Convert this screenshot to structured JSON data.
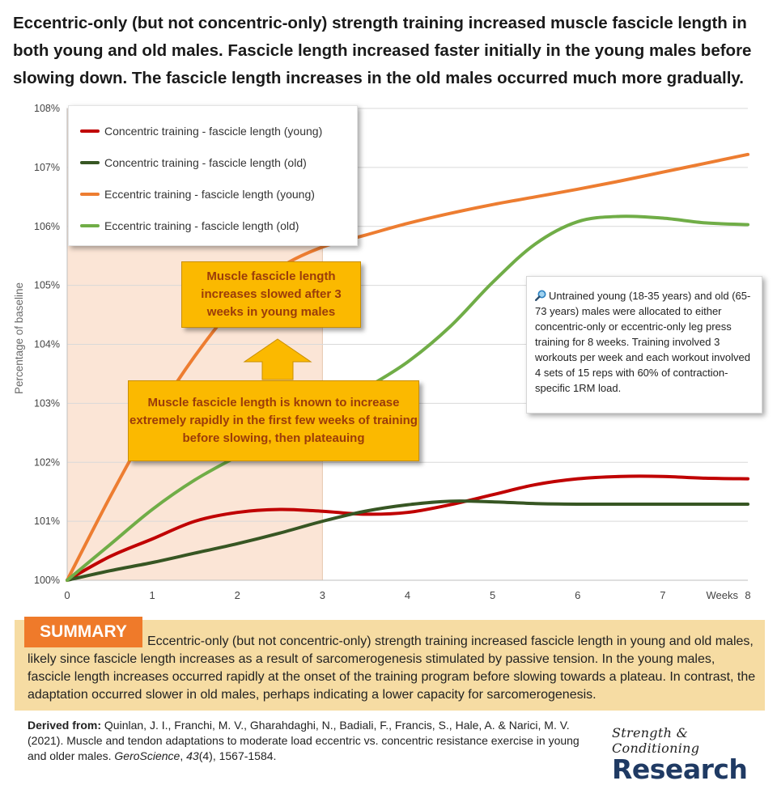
{
  "headline": "Eccentric-only (but not concentric-only) strength training increased muscle fascicle length in both young and old males. Fascicle length increased faster initially in the young males before slowing down. The fascicle length increases in the old males occurred much more gradually.",
  "chart_data": {
    "type": "line",
    "ylabel": "Percentage of baseline",
    "xlabel": "Weeks",
    "xlim": [
      0,
      8
    ],
    "ylim": [
      100,
      108
    ],
    "x_ticks": [
      "0",
      "1",
      "2",
      "3",
      "4",
      "5",
      "6",
      "7",
      "8"
    ],
    "y_ticks": [
      "100%",
      "101%",
      "102%",
      "103%",
      "104%",
      "105%",
      "106%",
      "107%",
      "108%"
    ],
    "grid": "horizontal",
    "legend_position": "top-left",
    "highlight_region": {
      "x_start": 0,
      "x_end": 3,
      "color": "#fbe5d6"
    },
    "series": [
      {
        "name": "Concentric training - fascicle length (young)",
        "color": "#c00000",
        "points": [
          [
            0,
            100
          ],
          [
            0.5,
            100.4
          ],
          [
            1,
            100.7
          ],
          [
            1.5,
            101.0
          ],
          [
            2,
            101.15
          ],
          [
            2.5,
            101.2
          ],
          [
            3,
            101.17
          ],
          [
            3.5,
            101.12
          ],
          [
            4,
            101.15
          ],
          [
            4.5,
            101.28
          ],
          [
            5,
            101.45
          ],
          [
            5.5,
            101.62
          ],
          [
            6,
            101.72
          ],
          [
            6.5,
            101.76
          ],
          [
            7,
            101.76
          ],
          [
            7.5,
            101.73
          ],
          [
            8,
            101.72
          ]
        ]
      },
      {
        "name": "Concentric training - fascicle length (old)",
        "color": "#375623",
        "points": [
          [
            0,
            100
          ],
          [
            0.5,
            100.16
          ],
          [
            1,
            100.3
          ],
          [
            1.5,
            100.46
          ],
          [
            2,
            100.62
          ],
          [
            2.5,
            100.8
          ],
          [
            3,
            101.0
          ],
          [
            3.5,
            101.17
          ],
          [
            4,
            101.28
          ],
          [
            4.5,
            101.34
          ],
          [
            5,
            101.33
          ],
          [
            5.5,
            101.3
          ],
          [
            6,
            101.29
          ],
          [
            6.5,
            101.29
          ],
          [
            7,
            101.29
          ],
          [
            7.5,
            101.29
          ],
          [
            8,
            101.29
          ]
        ]
      },
      {
        "name": "Eccentric training - fascicle length (young)",
        "color": "#ed7d31",
        "points": [
          [
            0,
            100
          ],
          [
            0.5,
            101.4
          ],
          [
            1,
            102.7
          ],
          [
            1.5,
            103.8
          ],
          [
            2,
            104.7
          ],
          [
            2.5,
            105.3
          ],
          [
            3,
            105.65
          ],
          [
            3.5,
            105.85
          ],
          [
            4,
            106.05
          ],
          [
            4.5,
            106.22
          ],
          [
            5,
            106.37
          ],
          [
            5.5,
            106.5
          ],
          [
            6,
            106.63
          ],
          [
            6.5,
            106.77
          ],
          [
            7,
            106.92
          ],
          [
            7.5,
            107.07
          ],
          [
            8,
            107.22
          ]
        ]
      },
      {
        "name": "Eccentric training - fascicle length (old)",
        "color": "#70ad47",
        "points": [
          [
            0,
            100
          ],
          [
            0.5,
            100.6
          ],
          [
            1,
            101.2
          ],
          [
            1.5,
            101.7
          ],
          [
            2,
            102.1
          ],
          [
            2.5,
            102.45
          ],
          [
            3,
            102.85
          ],
          [
            3.5,
            103.25
          ],
          [
            4,
            103.7
          ],
          [
            4.5,
            104.3
          ],
          [
            5,
            105.05
          ],
          [
            5.5,
            105.7
          ],
          [
            6,
            106.08
          ],
          [
            6.5,
            106.17
          ],
          [
            7,
            106.14
          ],
          [
            7.5,
            106.06
          ],
          [
            8,
            106.03
          ]
        ]
      }
    ]
  },
  "callouts": {
    "three_weeks": "Muscle fascicle length increases slowed after 3 weeks in young males",
    "rapid": "Muscle fascicle length is known to increase extremely rapidly in the first few weeks of training before slowing, then plateauing"
  },
  "infobox": {
    "icon": "magnifier-icon",
    "text": "Untrained young (18-35 years) and old (65-73 years) males were allocated to either concentric-only or eccentric-only leg press training for 8 weeks. Training involved 3 workouts per week and each workout involved 4 sets of 15 reps with 60% of contraction-specific 1RM load."
  },
  "summary": {
    "label": "SUMMARY",
    "text": "Eccentric-only (but not concentric-only) strength training increased fascicle length in young and old males, likely since fascicle length increases as a result of sarcomerogenesis stimulated by passive tension. In the young males, fascicle length increases occurred rapidly at the onset of the training program before slowing towards a plateau. In contrast, the adaptation occurred slower in old males, perhaps indicating a lower capacity for sarcomerogenesis."
  },
  "source": {
    "lead": "Derived from:",
    "before_journal": "Quinlan, J. I., Franchi, M. V., Gharahdaghi, N., Badiali, F., Francis, S., Hale, A. & Narici, M. V. (2021). Muscle and tendon adaptations to moderate load eccentric vs. concentric resistance exercise in young and older males.",
    "journal": "GeroScience",
    "volume": "43",
    "after_volume": "(4), 1567-1584."
  },
  "logo": {
    "script": "Strength & Conditioning",
    "main": "Research"
  }
}
